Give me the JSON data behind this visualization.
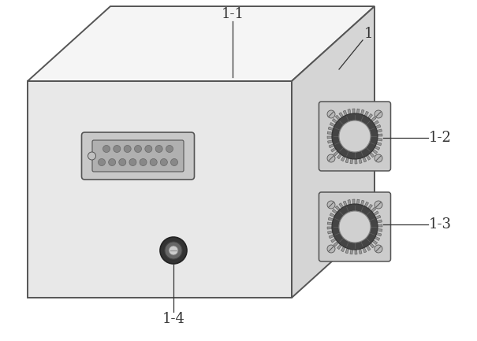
{
  "bg_color": "#ffffff",
  "front_face_color": "#e8e8e8",
  "top_face_color": "#f5f5f5",
  "right_face_color": "#d5d5d5",
  "edge_color": "#555555",
  "edge_lw": 1.4,
  "label_1": "1",
  "label_11": "1-1",
  "label_12": "1-2",
  "label_13": "1-3",
  "label_14": "1-4",
  "font_size": 13,
  "annotation_color": "#333333",
  "db_outer_color": "#c8c8c8",
  "db_inner_color": "#b0b0b0",
  "db_pin_color": "#888888",
  "bnc_outer_color": "#333333",
  "bnc_mid_color": "#666666",
  "bnc_inner_color": "#cccccc",
  "knob_plate_color": "#cccccc",
  "knob_ring_color": "#555555",
  "knob_body_color": "#888888",
  "knob_center_color": "#444444"
}
